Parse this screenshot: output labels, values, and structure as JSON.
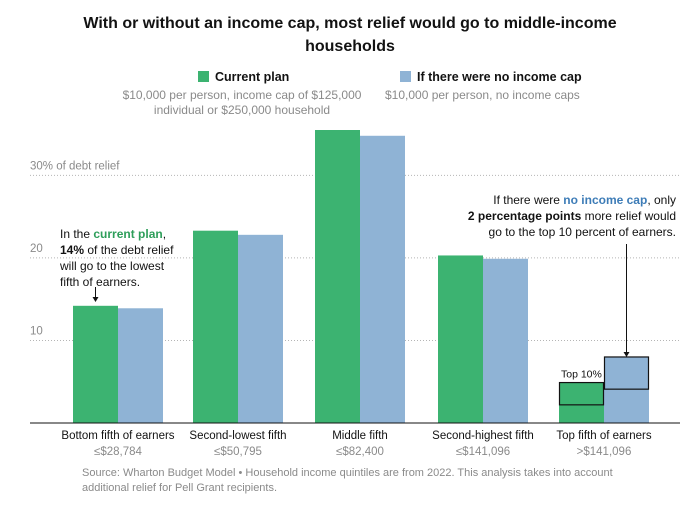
{
  "title": "With or without an income cap, most relief would go to middle-income households",
  "legend": {
    "current": {
      "label": "Current plan",
      "sub": "$10,000 per person, income cap of $125,000 individual or $250,000 household",
      "color": "#3cb371"
    },
    "nocap": {
      "label": "If there were no income cap",
      "sub": "$10,000 per person, no income caps",
      "color": "#8fb3d5"
    }
  },
  "chart_data": {
    "type": "bar",
    "categories": [
      "Bottom fifth of earners",
      "Second-lowest fifth",
      "Middle fifth",
      "Second-highest fifth",
      "Top fifth of earners"
    ],
    "category_sublabels": [
      "≤$28,784",
      "≤$50,795",
      "≤$82,400",
      "≤$141,096",
      ">$141,096"
    ],
    "series": [
      {
        "name": "Current plan",
        "values": [
          14.2,
          23.3,
          35.5,
          20.3,
          4.9
        ],
        "color": "#3cb371"
      },
      {
        "name": "If there were no income cap",
        "values": [
          13.9,
          22.8,
          34.8,
          19.9,
          8.0
        ],
        "color": "#8fb3d5"
      }
    ],
    "top10": {
      "label": "Top 10%",
      "current": 2.2,
      "nocap": 4.1
    },
    "ylim": [
      0,
      35.5
    ],
    "yticks": [
      10,
      20,
      30
    ],
    "ytick_labels": [
      "10",
      "20",
      "30% of debt relief"
    ],
    "grid": true
  },
  "annotations": {
    "left": {
      "p1": "In the ",
      "p1_hl": "current plan",
      "p1_end": ",",
      "p2_b": "14%",
      "p2": " of the debt relief",
      "p3": "will go to the lowest",
      "p4": "fifth of earners."
    },
    "right": {
      "p1": "If there were ",
      "p1_hl": "no income cap",
      "p1_end": ", only",
      "p2_b": "2 percentage points",
      "p2": " more relief would",
      "p3": "go to the top 10 percent of earners."
    }
  },
  "source": "Source: Wharton Budget Model • Household income quintiles are from 2022. This analysis takes into account additional relief for Pell Grant recipients."
}
